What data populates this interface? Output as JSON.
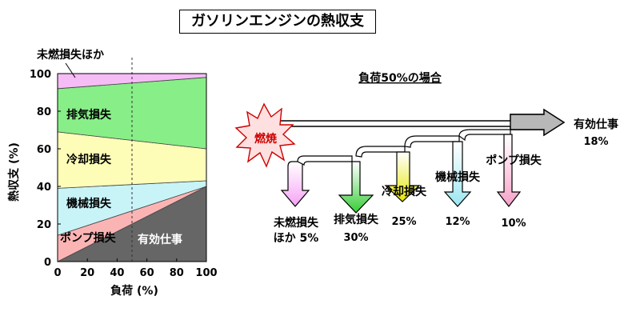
{
  "title": "ガソリンエンジンの熱収支",
  "chart_data": [
    {
      "type": "area",
      "stacked": true,
      "xlabel": "負荷 (%)",
      "ylabel": "熱収支 (%)",
      "xlim": [
        0,
        100
      ],
      "ylim": [
        0,
        100
      ],
      "xticks": [
        0,
        20,
        40,
        60,
        80,
        100
      ],
      "yticks": [
        0,
        20,
        40,
        60,
        80,
        100
      ],
      "marker_line_x": 50,
      "series": [
        {
          "name": "有効仕事",
          "x": [
            0,
            100
          ],
          "top": [
            0,
            40
          ],
          "color": "#666666"
        },
        {
          "name": "ポンプ損失",
          "x": [
            0,
            100
          ],
          "top": [
            14,
            40
          ],
          "color": "#fbb4b4"
        },
        {
          "name": "機械損失",
          "x": [
            0,
            100
          ],
          "top": [
            39,
            43
          ],
          "color": "#c8f4f8"
        },
        {
          "name": "冷却損失",
          "x": [
            0,
            100
          ],
          "top": [
            69,
            60
          ],
          "color": "#fdfdb8"
        },
        {
          "name": "排気損失",
          "x": [
            0,
            100
          ],
          "top": [
            92,
            98
          ],
          "color": "#88ee88"
        },
        {
          "name": "未燃損失ほか",
          "x": [
            0,
            100
          ],
          "top": [
            100,
            100
          ],
          "color": "#f6bcf6"
        }
      ]
    },
    {
      "type": "flow",
      "subtitle": "負荷50%の場合",
      "source_label": "燃焼",
      "output": {
        "label": "有効仕事",
        "value": "18%"
      },
      "losses": [
        {
          "label_lines": [
            "未燃損失",
            "ほか 5%"
          ],
          "value": "",
          "color": "#f6a0f6"
        },
        {
          "label_lines": [
            "排気損失"
          ],
          "value": "30%",
          "color": "#33cc33"
        },
        {
          "label_lines": [
            "冷却損失"
          ],
          "value": "25%",
          "color": "#e6e600"
        },
        {
          "label_lines": [
            "機械損失"
          ],
          "value": "12%",
          "color": "#99e6f0"
        },
        {
          "label_lines": [
            "ポンプ損失"
          ],
          "value": "10%",
          "color": "#f6a0c8"
        }
      ]
    }
  ]
}
